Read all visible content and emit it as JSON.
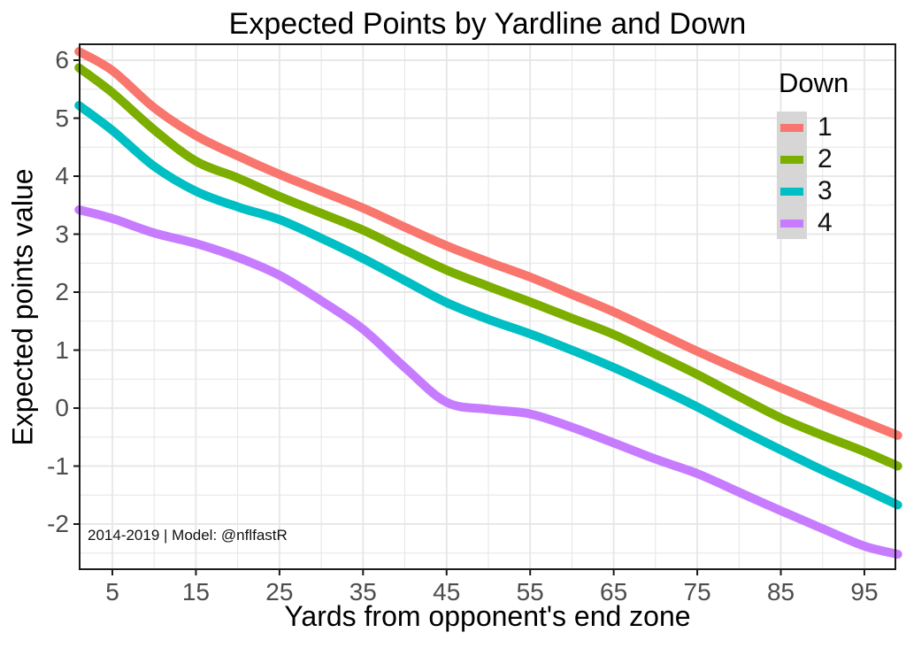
{
  "title": "Expected Points by Yardline and Down",
  "annotation": "2014-2019 | Model: @nflfastR",
  "legend": {
    "title": "Down",
    "position": "inside-top-right",
    "key_fill": "#d6d6d6"
  },
  "chart_data": {
    "type": "line",
    "title": "Expected Points by Yardline and Down",
    "xlabel": "Yards from opponent's end zone",
    "ylabel": "Expected points value",
    "x": [
      1,
      5,
      10,
      15,
      20,
      25,
      30,
      35,
      40,
      45,
      50,
      55,
      60,
      65,
      70,
      75,
      80,
      85,
      90,
      95,
      99
    ],
    "series": [
      {
        "name": "1",
        "color": "#F8766D",
        "values": [
          6.15,
          5.82,
          5.18,
          4.7,
          4.35,
          4.03,
          3.74,
          3.45,
          3.12,
          2.8,
          2.52,
          2.26,
          1.96,
          1.66,
          1.32,
          0.98,
          0.66,
          0.35,
          0.05,
          -0.24,
          -0.47
        ]
      },
      {
        "name": "2",
        "color": "#7CAE00",
        "values": [
          5.87,
          5.44,
          4.8,
          4.26,
          3.97,
          3.65,
          3.36,
          3.07,
          2.72,
          2.38,
          2.1,
          1.83,
          1.55,
          1.27,
          0.93,
          0.58,
          0.2,
          -0.17,
          -0.47,
          -0.75,
          -1.0
        ]
      },
      {
        "name": "3",
        "color": "#00BFC4",
        "values": [
          5.22,
          4.79,
          4.17,
          3.74,
          3.47,
          3.25,
          2.93,
          2.58,
          2.2,
          1.82,
          1.53,
          1.28,
          1.0,
          0.7,
          0.37,
          0.02,
          -0.36,
          -0.72,
          -1.07,
          -1.4,
          -1.67
        ]
      },
      {
        "name": "4",
        "color": "#C77CFF",
        "values": [
          3.42,
          3.27,
          3.02,
          2.84,
          2.6,
          2.29,
          1.85,
          1.36,
          0.7,
          0.1,
          -0.02,
          -0.1,
          -0.33,
          -0.6,
          -0.88,
          -1.13,
          -1.45,
          -1.77,
          -2.08,
          -2.38,
          -2.52
        ]
      }
    ],
    "x_ticks": [
      5,
      15,
      25,
      35,
      45,
      55,
      65,
      75,
      85,
      95
    ],
    "x_minor_ticks": [
      10,
      20,
      30,
      40,
      50,
      60,
      70,
      80,
      90
    ],
    "y_ticks": [
      6,
      5,
      4,
      3,
      2,
      1,
      0,
      -1,
      -2
    ],
    "y_minor_ticks": [
      5.5,
      4.5,
      3.5,
      2.5,
      1.5,
      0.5,
      -0.5,
      -1.5,
      -2.5
    ],
    "xlim": [
      1,
      99
    ],
    "ylim": [
      -2.8,
      6.3
    ],
    "grid": true,
    "panel_background": "#ffffff",
    "grid_color": "#e5e5e5",
    "border_color": "#1a1a1a",
    "tick_label_color": "#4d4d4d",
    "legend_title": "Down",
    "legend_position": "inside top-right"
  }
}
